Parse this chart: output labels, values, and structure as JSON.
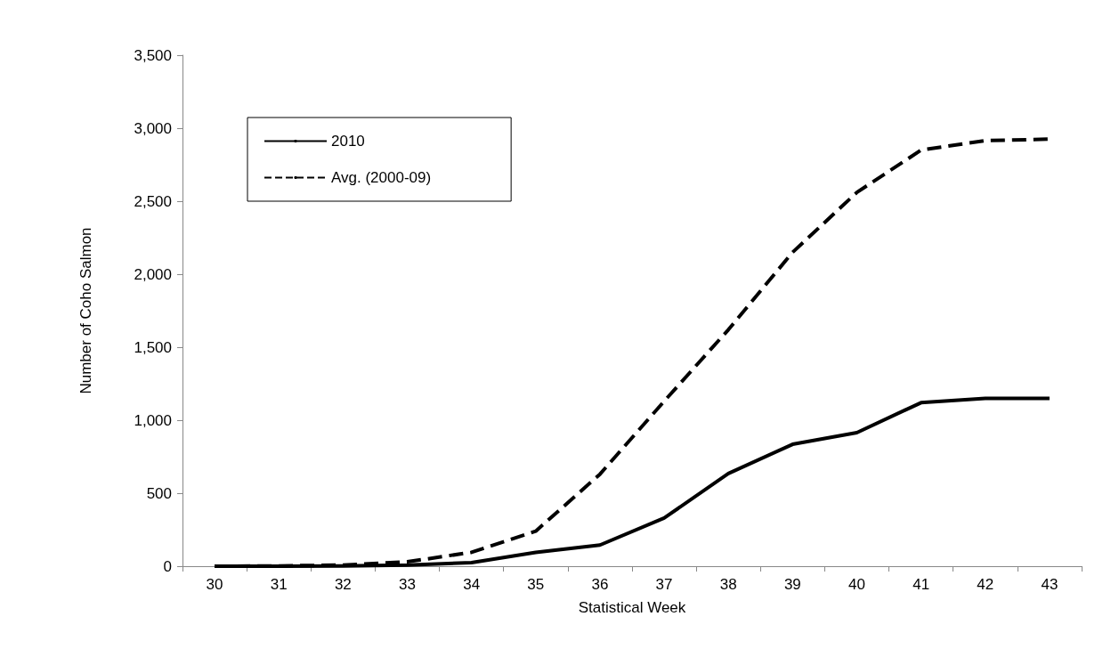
{
  "chart_data": {
    "type": "line",
    "xlabel": "Statistical Week",
    "ylabel": "Number of Coho Salmon",
    "categories": [
      "30",
      "31",
      "32",
      "33",
      "34",
      "35",
      "36",
      "37",
      "38",
      "39",
      "40",
      "41",
      "42",
      "43"
    ],
    "series": [
      {
        "name": "2010",
        "color": "#000000",
        "line_style": "solid",
        "values": [
          0,
          0,
          2,
          8,
          25,
          95,
          145,
          330,
          635,
          835,
          915,
          1120,
          1150,
          1150
        ]
      },
      {
        "name": "Avg. (2000-09)",
        "color": "#000000",
        "line_style": "dashed",
        "values": [
          0,
          2,
          8,
          30,
          95,
          240,
          630,
          1130,
          1620,
          2150,
          2560,
          2850,
          2915,
          2925
        ]
      }
    ],
    "ylim": [
      0,
      3500
    ],
    "yticks": [
      0,
      500,
      {
        "value": 1000,
        "label": "1,000"
      },
      {
        "value": 1500,
        "label": "1,500"
      },
      {
        "value": 2000,
        "label": "2,000"
      },
      {
        "value": 2500,
        "label": "2,500"
      },
      {
        "value": 3000,
        "label": "3,000"
      },
      {
        "value": 3500,
        "label": "3,500"
      }
    ],
    "grid": false,
    "legend": "top left",
    "marker": "none"
  }
}
